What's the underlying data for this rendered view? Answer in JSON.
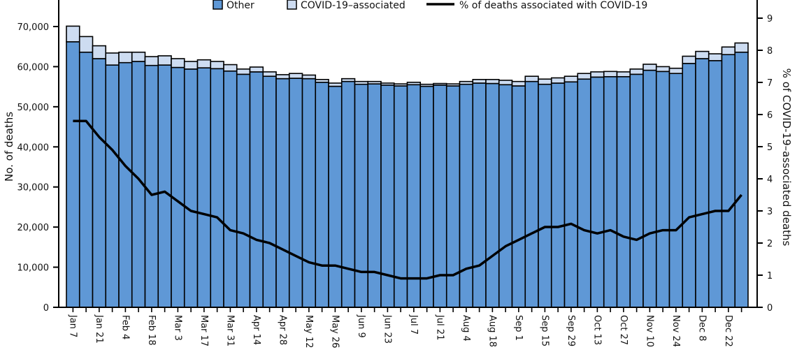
{
  "chart_data": {
    "type": "bar",
    "stacked": true,
    "legend": {
      "placement": "top",
      "items": [
        "Other",
        "COVID-19–associated",
        "% of deaths associated with COVID-19"
      ]
    },
    "ylabel": "No. of deaths",
    "y2label": "% of COVID-19–associated deaths",
    "ylim": [
      0,
      70000
    ],
    "y2lim": [
      0,
      9
    ],
    "yticks": [
      "0",
      "10,000",
      "20,000",
      "30,000",
      "40,000",
      "50,000",
      "60,000",
      "70,000"
    ],
    "y2ticks": [
      "0",
      "1",
      "2",
      "3",
      "4",
      "5",
      "6",
      "7",
      "8",
      "9"
    ],
    "tick_labels": [
      "Jan 7",
      "Jan 21",
      "Feb 4",
      "Feb 18",
      "Mar 3",
      "Mar 17",
      "Mar 31",
      "Apr 14",
      "Apr 28",
      "May 12",
      "May 26",
      "Jun 9",
      "Jun 23",
      "Jul 7",
      "Jul 21",
      "Aug 4",
      "Aug 18",
      "Sep 1",
      "Sep 15",
      "Sep 29",
      "Oct 13",
      "Oct 27",
      "Nov 10",
      "Nov 24",
      "Dec 8",
      "Dec 22"
    ],
    "grid": false,
    "colors": {
      "other": "#5f98d6",
      "covid": "#cddcf1",
      "line": "#000000",
      "outline": "#000000"
    },
    "series": [
      {
        "name": "Other",
        "values": [
          66200,
          63600,
          62000,
          60400,
          61000,
          61300,
          60300,
          60400,
          59800,
          59400,
          59700,
          59500,
          58900,
          58100,
          58700,
          57600,
          57000,
          57100,
          57000,
          56100,
          55100,
          56300,
          55600,
          55700,
          55400,
          55200,
          55500,
          55100,
          55400,
          55200,
          55600,
          55900,
          55800,
          55500,
          55200,
          56300,
          55600,
          55900,
          56200,
          56900,
          57400,
          57500,
          57500,
          58100,
          59100,
          58800,
          58300,
          60800,
          62000,
          61500,
          63000,
          63600
        ]
      },
      {
        "name": "COVID-19–associated",
        "values": [
          3900,
          3900,
          3200,
          3000,
          2600,
          2300,
          2200,
          2300,
          2200,
          1900,
          2000,
          1800,
          1600,
          1300,
          1200,
          1100,
          1000,
          1200,
          900,
          700,
          800,
          700,
          700,
          600,
          500,
          500,
          600,
          500,
          400,
          500,
          700,
          900,
          1000,
          1100,
          1100,
          1300,
          1300,
          1300,
          1400,
          1400,
          1300,
          1300,
          1200,
          1300,
          1500,
          1200,
          1300,
          1800,
          1800,
          1700,
          1900,
          2300
        ]
      },
      {
        "name": "% of deaths associated with COVID-19",
        "axis": "right",
        "values": [
          5.8,
          5.8,
          5.3,
          4.9,
          4.4,
          4.0,
          3.5,
          3.6,
          3.3,
          3.0,
          2.9,
          2.8,
          2.4,
          2.3,
          2.1,
          2.0,
          1.8,
          1.6,
          1.4,
          1.3,
          1.3,
          1.2,
          1.1,
          1.1,
          1.0,
          0.9,
          0.9,
          0.9,
          1.0,
          1.0,
          1.2,
          1.3,
          1.6,
          1.9,
          2.1,
          2.3,
          2.5,
          2.5,
          2.6,
          2.4,
          2.3,
          2.4,
          2.2,
          2.1,
          2.3,
          2.4,
          2.4,
          2.8,
          2.9,
          3.0,
          3.0,
          3.5
        ]
      }
    ]
  }
}
